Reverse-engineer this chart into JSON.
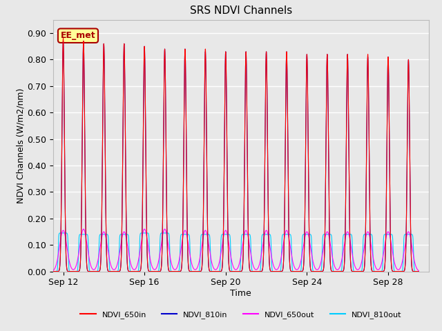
{
  "title": "SRS NDVI Channels",
  "xlabel": "Time",
  "ylabel": "NDVI Channels (W/m2/nm)",
  "ylim": [
    0.0,
    0.95
  ],
  "yticks": [
    0.0,
    0.1,
    0.2,
    0.3,
    0.4,
    0.5,
    0.6,
    0.7,
    0.8,
    0.9
  ],
  "background_color": "#e8e8e8",
  "plot_bg_color": "#e8e8e8",
  "legend_labels": [
    "NDVI_650in",
    "NDVI_810in",
    "NDVI_650out",
    "NDVI_810out"
  ],
  "legend_colors": [
    "#ff0000",
    "#0000cc",
    "#ff00ff",
    "#00ccff"
  ],
  "annotation_text": "EE_met",
  "annotation_color": "#aa0000",
  "annotation_bg": "#ffff99",
  "x_tick_labels": [
    "Sep 12",
    "Sep 16",
    "Sep 20",
    "Sep 24",
    "Sep 28"
  ],
  "num_cycles": 18,
  "start_day": 11.5,
  "cycle_period": 1.0,
  "peak_in_650": [
    0.88,
    0.87,
    0.86,
    0.86,
    0.85,
    0.84,
    0.84,
    0.84,
    0.83,
    0.83,
    0.83,
    0.83,
    0.82,
    0.82,
    0.82,
    0.82,
    0.81,
    0.8
  ],
  "peak_in_810": [
    0.87,
    0.87,
    0.86,
    0.86,
    0.85,
    0.84,
    0.84,
    0.83,
    0.83,
    0.83,
    0.83,
    0.83,
    0.82,
    0.82,
    0.82,
    0.81,
    0.81,
    0.8
  ],
  "peak_out_650": [
    0.155,
    0.16,
    0.15,
    0.15,
    0.16,
    0.16,
    0.155,
    0.155,
    0.155,
    0.155,
    0.155,
    0.155,
    0.15,
    0.15,
    0.15,
    0.15,
    0.15,
    0.15
  ],
  "peak_out_810": [
    0.145,
    0.14,
    0.14,
    0.14,
    0.145,
    0.145,
    0.14,
    0.14,
    0.14,
    0.14,
    0.14,
    0.14,
    0.14,
    0.14,
    0.14,
    0.14,
    0.14,
    0.14
  ]
}
